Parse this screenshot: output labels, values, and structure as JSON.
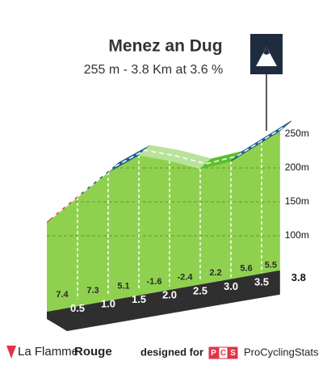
{
  "chart_data": {
    "type": "climb-profile",
    "title": "Menez an Dug",
    "subtitle": "255 m - 3.8 Km at 3.6 %",
    "x": [
      0,
      0.5,
      {
        "value": 1,
        "label": "1.0"
      },
      1.5,
      {
        "value": 2,
        "label": "2.0"
      },
      2.5,
      {
        "value": 3,
        "label": "3.0"
      },
      3.5,
      3.8
    ],
    "values": [
      120,
      157,
      194,
      219,
      211,
      199,
      210,
      238,
      255
    ],
    "gradients": [
      7.4,
      7.3,
      5.1,
      -1.6,
      -2.4,
      2.2,
      5.6,
      5.5
    ],
    "segment_colors": [
      "#e23448",
      "#1f5f8e",
      "#1f5f8e",
      "#b9e39a",
      "#b9e39a",
      "#5cc02a",
      "#1f5f8e",
      "#1f5f8e"
    ],
    "front_color": "#8fd14f",
    "ylim": [
      100,
      250
    ],
    "yticks": [
      {
        "value": 100,
        "label": "100m"
      },
      {
        "value": 150,
        "label": "150m"
      },
      {
        "value": 200,
        "label": "200m"
      },
      {
        "value": 250,
        "label": "250m"
      }
    ],
    "grid": true
  },
  "footer": {
    "brand_light": "La Flamme",
    "brand_bold": "Rouge",
    "designed": "designed for",
    "pcs": [
      "P",
      "C",
      "S"
    ],
    "site": "ProCyclingStats"
  }
}
